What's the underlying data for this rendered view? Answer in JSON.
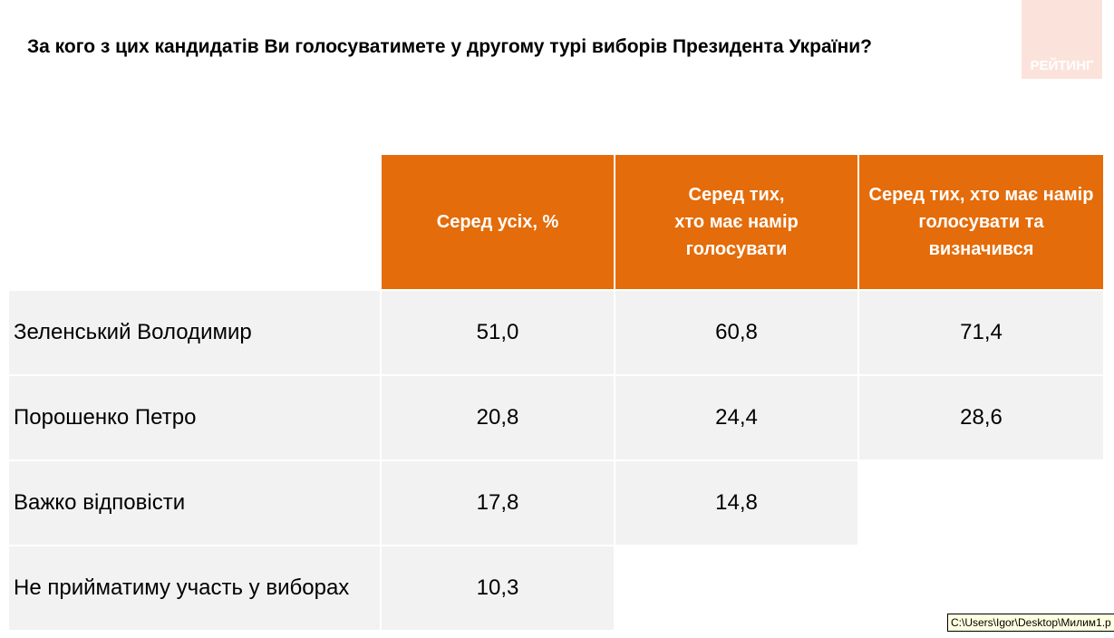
{
  "header": {
    "title": "За кого з цих кандидатів Ви голосуватимете у другому турі виборів Президента України?",
    "logo": "РЕЙТИНГ"
  },
  "table": {
    "columns": [
      "Серед усіх, %",
      "Серед тих,\nхто має намір\nголосувати",
      "Серед тих, хто має намір\nголосувати та\nвизначився"
    ],
    "rows": [
      {
        "name": "Зеленський Володимир",
        "values": [
          "51,0",
          "60,8",
          "71,4"
        ]
      },
      {
        "name": "Порошенко Петро",
        "values": [
          "20,8",
          "24,4",
          "28,6"
        ]
      },
      {
        "name": "Важко відповісти",
        "values": [
          "17,8",
          "14,8"
        ]
      },
      {
        "name": "Не прийматиму участь у виборах",
        "values": [
          "10,3"
        ]
      }
    ]
  },
  "status": {
    "tooltip": "C:\\Users\\Igor\\Desktop\\Милим1.p"
  }
}
